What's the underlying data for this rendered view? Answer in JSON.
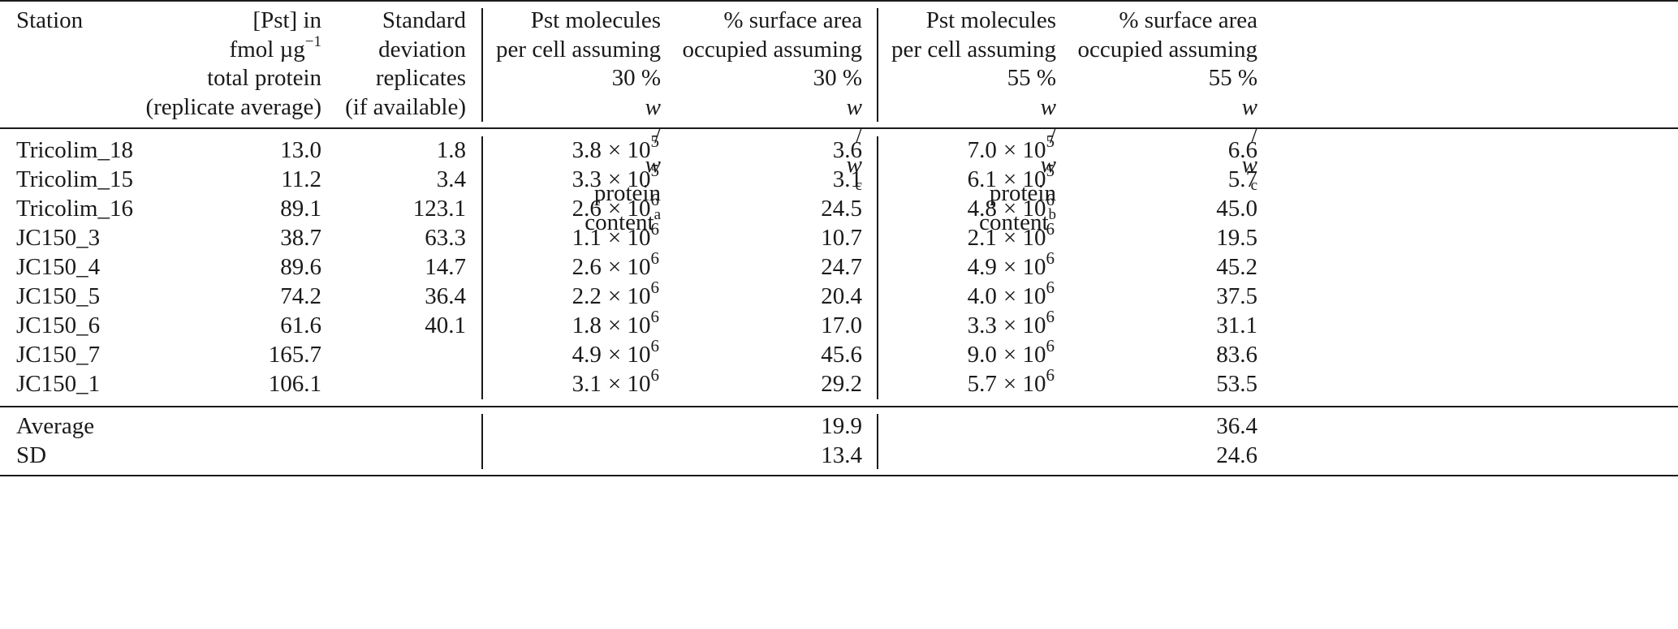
{
  "table": {
    "headers": {
      "station": "Station",
      "pst": [
        "[Pst] in",
        "fmol µg",
        "total protein",
        "(replicate average)"
      ],
      "pst_sup": "−1",
      "sd": [
        "Standard",
        "deviation",
        "replicates",
        "(if available)"
      ],
      "mol30": [
        "Pst molecules",
        "per cell assuming",
        "30 % w/w protein",
        "content"
      ],
      "mol30_sup": "a",
      "sa30": [
        "% surface area",
        "occupied assuming",
        "30 % w/w"
      ],
      "sa30_sup": "c",
      "mol55": [
        "Pst molecules",
        "per cell assuming",
        "55 % w/w protein",
        "content"
      ],
      "mol55_sup": "b",
      "sa55": [
        "% surface area",
        "occupied assuming",
        "55 % w/w"
      ],
      "sa55_sup": "c"
    },
    "rows": [
      {
        "station": "Tricolim_18",
        "pst": "13.0",
        "sd": "1.8",
        "mol30_m": "3.8",
        "mol30_e": "5",
        "sa30": "3.6",
        "mol55_m": "7.0",
        "mol55_e": "5",
        "sa55": "6.6"
      },
      {
        "station": "Tricolim_15",
        "pst": "11.2",
        "sd": "3.4",
        "mol30_m": "3.3",
        "mol30_e": "5",
        "sa30": "3.1",
        "mol55_m": "6.1",
        "mol55_e": "5",
        "sa55": "5.7"
      },
      {
        "station": "Tricolim_16",
        "pst": "89.1",
        "sd": "123.1",
        "mol30_m": "2.6",
        "mol30_e": "6",
        "sa30": "24.5",
        "mol55_m": "4.8",
        "mol55_e": "6",
        "sa55": "45.0"
      },
      {
        "station": "JC150_3",
        "pst": "38.7",
        "sd": "63.3",
        "mol30_m": "1.1",
        "mol30_e": "6",
        "sa30": "10.7",
        "mol55_m": "2.1",
        "mol55_e": "6",
        "sa55": "19.5"
      },
      {
        "station": "JC150_4",
        "pst": "89.6",
        "sd": "14.7",
        "mol30_m": "2.6",
        "mol30_e": "6",
        "sa30": "24.7",
        "mol55_m": "4.9",
        "mol55_e": "6",
        "sa55": "45.2"
      },
      {
        "station": "JC150_5",
        "pst": "74.2",
        "sd": "36.4",
        "mol30_m": "2.2",
        "mol30_e": "6",
        "sa30": "20.4",
        "mol55_m": "4.0",
        "mol55_e": "6",
        "sa55": "37.5"
      },
      {
        "station": "JC150_6",
        "pst": "61.6",
        "sd": "40.1",
        "mol30_m": "1.8",
        "mol30_e": "6",
        "sa30": "17.0",
        "mol55_m": "3.3",
        "mol55_e": "6",
        "sa55": "31.1"
      },
      {
        "station": "JC150_7",
        "pst": "165.7",
        "sd": "",
        "mol30_m": "4.9",
        "mol30_e": "6",
        "sa30": "45.6",
        "mol55_m": "9.0",
        "mol55_e": "6",
        "sa55": "83.6"
      },
      {
        "station": "JC150_1",
        "pst": "106.1",
        "sd": "",
        "mol30_m": "3.1",
        "mol30_e": "6",
        "sa30": "29.2",
        "mol55_m": "5.7",
        "mol55_e": "6",
        "sa55": "53.5"
      }
    ],
    "summary": [
      {
        "label": "Average",
        "sa30": "19.9",
        "sa55": "36.4"
      },
      {
        "label": "SD",
        "sa30": "13.4",
        "sa55": "24.6"
      }
    ],
    "times_symbol": "× 10"
  }
}
